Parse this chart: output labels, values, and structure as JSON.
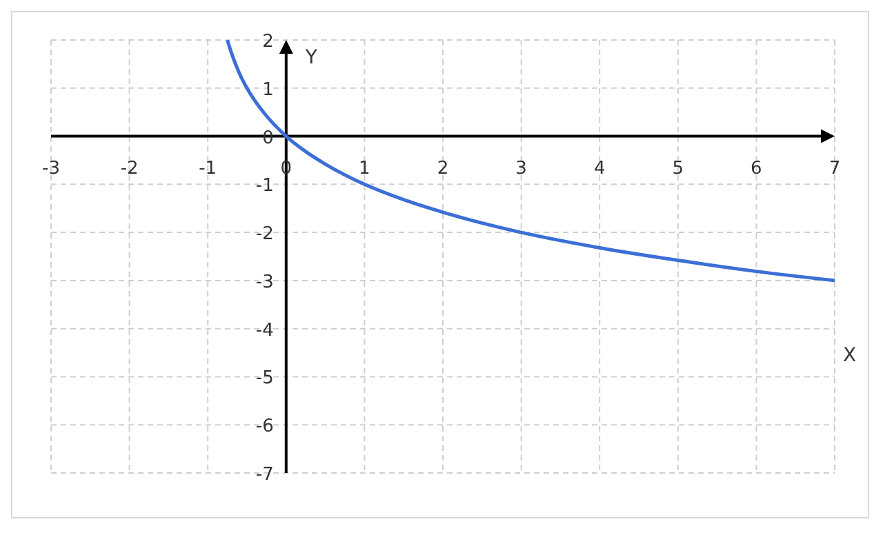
{
  "chart_data": {
    "type": "line",
    "xlabel": "X",
    "ylabel": "Y",
    "x": [
      -0.75,
      -0.7,
      -0.6,
      -0.5,
      -0.4,
      -0.25,
      0,
      0.25,
      0.5,
      1,
      1.5,
      2,
      3,
      4,
      5,
      6,
      7
    ],
    "series": [
      {
        "color": "#3c6fd6",
        "values": [
          2,
          1.74,
          1.32,
          1,
          0.74,
          0.42,
          0,
          -0.32,
          -0.58,
          -1,
          -1.32,
          -1.58,
          -2,
          -2.32,
          -2.58,
          -2.81,
          -3
        ]
      }
    ],
    "xlim": [
      -3,
      7
    ],
    "ylim": [
      -7,
      2
    ],
    "xticks": [
      -3,
      -2,
      -1,
      0,
      1,
      2,
      3,
      4,
      5,
      6,
      7
    ],
    "yticks": [
      -7,
      -6,
      -5,
      -4,
      -3,
      -2,
      -1,
      0,
      1,
      2
    ],
    "grid": true,
    "marker": "none",
    "line_style": "solid"
  }
}
